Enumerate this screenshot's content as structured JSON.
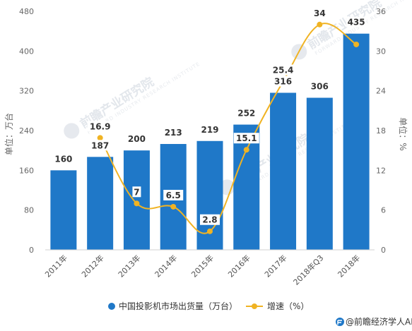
{
  "chart_data": {
    "type": "bar",
    "categories": [
      "2011年",
      "2012年",
      "2013年",
      "2014年",
      "2015年",
      "2016年",
      "2017年",
      "2018年Q3",
      "2018年"
    ],
    "series": [
      {
        "name": "中国投影机市场出货量（万台）",
        "type": "bar",
        "axis": "left",
        "color": "#1f78c8",
        "values": [
          160,
          187,
          200,
          213,
          219,
          252,
          316,
          306,
          435
        ],
        "labels": [
          "160",
          "187",
          "200",
          "213",
          "219",
          "252",
          "316",
          "306",
          "435"
        ]
      },
      {
        "name": "增速（%）",
        "type": "line",
        "axis": "right",
        "color": "#f0b323",
        "values": [
          null,
          16.9,
          7,
          6.5,
          2.8,
          15.1,
          25.4,
          34,
          31
        ],
        "labels": [
          "",
          "16.9",
          "7",
          "6.5",
          "2.8",
          "15.1",
          "25.4",
          "34",
          ""
        ]
      }
    ],
    "ylabel": "单位：万台",
    "y2label": "单位：%",
    "ylim": [
      0,
      480
    ],
    "y2lim": [
      0,
      36
    ],
    "yticks": [
      "0",
      "80",
      "160",
      "240",
      "320",
      "400",
      "480"
    ],
    "y2ticks": [
      "0",
      "6",
      "12",
      "18",
      "24",
      "30",
      "36"
    ],
    "grid": false,
    "legend": "bottom"
  },
  "watermark": {
    "text": "前瞻产业研究院",
    "sub": "FORWARD INDUSTRY RESEARCH INSTITUTE",
    "icon": "forward-logo-icon"
  },
  "footer": {
    "text": "@前瞻经济学人APP",
    "icon": "forward-logo-icon",
    "icon_color": "#1f78c8"
  }
}
